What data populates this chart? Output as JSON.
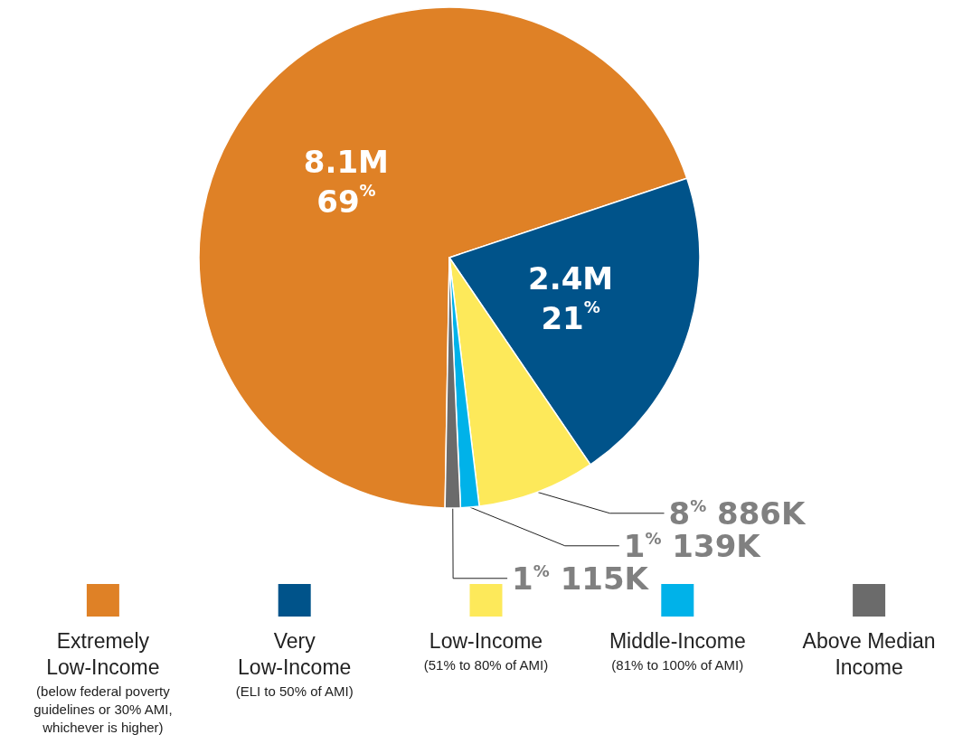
{
  "chart_data": {
    "type": "pie",
    "categories": [
      "Extremely Low-Income\n(below federal poverty guidelines or 30% AMI, whichever is higher)",
      "Very Low-Income\n(ELI to 50% of AMI)",
      "Low-Income\n(51% to 80% of AMI)",
      "Middle-Income\n(81% to 100% of AMI)",
      "Above Median Income"
    ],
    "values": [
      8100000,
      2400000,
      886000,
      139000,
      115000
    ],
    "value_labels": [
      "8.1M\n69$^{%}$",
      "2.4M\n21$^{%}$",
      "8$^{%}$ 886K",
      "1$^{%}$ 139K",
      "1$^{%}$ 115K"
    ],
    "colors": [
      "#df8126",
      "#00538a",
      "#fde95a",
      "#00b2e9",
      "#6b6b6b"
    ],
    "legend": "bottom"
  }
}
